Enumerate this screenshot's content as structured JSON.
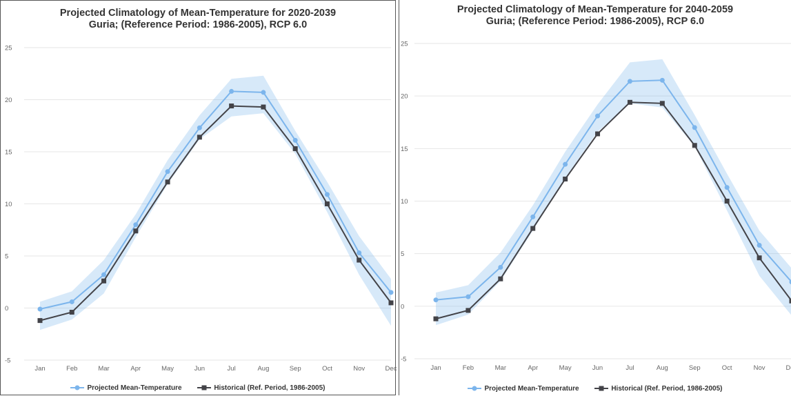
{
  "chart_data": [
    {
      "type": "line",
      "title": "Projected Climatology of Mean-Temperature for 2020-2039",
      "subtitle": "Guria; (Reference Period: 1986-2005), RCP 6.0",
      "categories": [
        "Jan",
        "Feb",
        "Mar",
        "Apr",
        "May",
        "Jun",
        "Jul",
        "Aug",
        "Sep",
        "Oct",
        "Nov",
        "Dec"
      ],
      "yticks": [
        "25",
        "20",
        "15",
        "10",
        "5",
        "0",
        "-5"
      ],
      "ylim": [
        -5,
        25
      ],
      "grid": true,
      "legend_position": "bottom",
      "series": [
        {
          "name": "Projected Mean-Temperature",
          "marker": "circle",
          "color": "#7cb5ec",
          "values": [
            -0.1,
            0.6,
            3.2,
            8.0,
            13.1,
            17.3,
            20.8,
            20.7,
            16.1,
            10.9,
            5.3,
            1.5
          ]
        },
        {
          "name": "Historical (Ref. Period, 1986-2005)",
          "marker": "square",
          "color": "#434348",
          "values": [
            -1.2,
            -0.4,
            2.6,
            7.4,
            12.1,
            16.4,
            19.4,
            19.3,
            15.3,
            10.0,
            4.6,
            0.5
          ]
        }
      ],
      "range": {
        "low": [
          -2.1,
          -1.1,
          1.4,
          6.8,
          11.9,
          16.2,
          18.4,
          18.7,
          14.8,
          9.2,
          3.2,
          -1.7
        ],
        "high": [
          0.6,
          1.6,
          4.6,
          9.0,
          14.2,
          18.5,
          22.0,
          22.3,
          17.0,
          12.1,
          6.9,
          2.8
        ]
      }
    },
    {
      "type": "line",
      "title": "Projected Climatology of Mean-Temperature for 2040-2059",
      "subtitle": "Guria; (Reference Period: 1986-2005), RCP 6.0",
      "categories": [
        "Jan",
        "Feb",
        "Mar",
        "Apr",
        "May",
        "Jun",
        "Jul",
        "Aug",
        "Sep",
        "Oct",
        "Nov",
        "Dec"
      ],
      "yticks": [
        "25",
        "20",
        "15",
        "10",
        "5",
        "0",
        "-5"
      ],
      "ylim": [
        -5,
        25
      ],
      "grid": true,
      "legend_position": "bottom",
      "series": [
        {
          "name": "Projected Mean-Temperature",
          "marker": "circle",
          "color": "#7cb5ec",
          "values": [
            0.6,
            0.9,
            3.7,
            8.5,
            13.5,
            18.1,
            21.4,
            21.5,
            17.0,
            11.3,
            5.8,
            2.3
          ]
        },
        {
          "name": "Historical (Ref. Period, 1986-2005)",
          "marker": "square",
          "color": "#434348",
          "values": [
            -1.2,
            -0.4,
            2.6,
            7.4,
            12.1,
            16.4,
            19.4,
            19.3,
            15.3,
            10.0,
            4.6,
            0.5
          ]
        }
      ],
      "range": {
        "low": [
          -1.8,
          -0.8,
          2.4,
          7.2,
          12.2,
          16.6,
          19.3,
          18.9,
          15.2,
          9.1,
          2.9,
          -0.9
        ],
        "high": [
          1.3,
          2.0,
          5.1,
          9.6,
          14.7,
          19.2,
          23.2,
          23.5,
          18.2,
          12.6,
          7.2,
          3.6
        ]
      }
    }
  ]
}
